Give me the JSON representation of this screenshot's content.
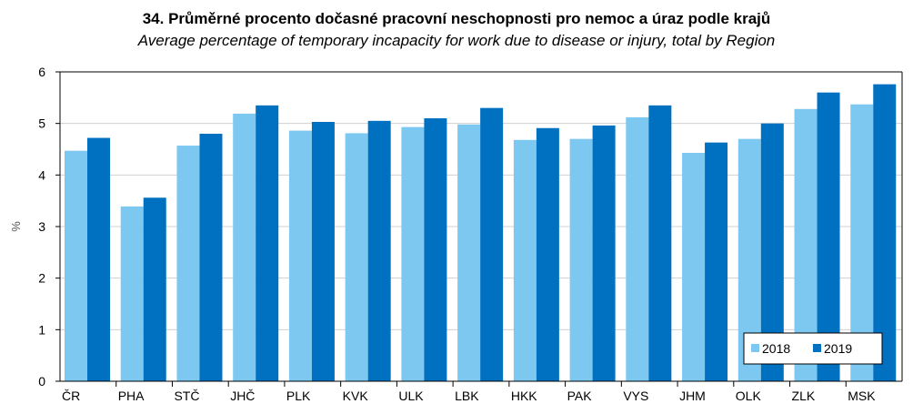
{
  "chart_data": {
    "type": "bar",
    "title": "34. Průměrné procento dočasné pracovní neschopnosti pro nemoc a úraz podle krajů",
    "subtitle": "Average percentage of temporary incapacity for work due to disease or injury, total by Region",
    "ylabel": "%",
    "xlabel": "",
    "ylim": [
      0,
      6
    ],
    "yticks": [
      "0",
      "1",
      "2",
      "3",
      "4",
      "5",
      "6"
    ],
    "categories": [
      "ČR",
      "PHA",
      "STČ",
      "JHČ",
      "PLK",
      "KVK",
      "ULK",
      "LBK",
      "HKK",
      "PAK",
      "VYS",
      "JHM",
      "OLK",
      "ZLK",
      "MSK"
    ],
    "series": [
      {
        "name": "2018",
        "color": "#7dc8f0",
        "values": [
          4.47,
          3.39,
          4.57,
          5.19,
          4.86,
          4.81,
          4.93,
          4.98,
          4.68,
          4.7,
          5.12,
          4.43,
          4.7,
          5.28,
          5.37
        ]
      },
      {
        "name": "2019",
        "color": "#0070c0",
        "values": [
          4.72,
          3.56,
          4.8,
          5.35,
          5.03,
          5.05,
          5.1,
          5.3,
          4.91,
          4.96,
          5.35,
          4.63,
          5.0,
          5.6,
          5.76
        ]
      }
    ],
    "grid": true,
    "legend_position": "bottom-right"
  }
}
